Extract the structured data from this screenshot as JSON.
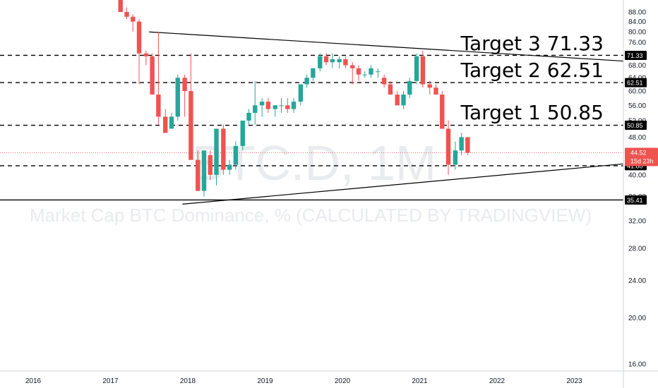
{
  "watermark": {
    "symbol": "BTC.D, 1M",
    "description": "Market Cap BTC Dominance, % (CALCULATED BY TRADINGVIEW)"
  },
  "colors": {
    "up": "#26a69a",
    "down": "#ef5350",
    "line": "#000000",
    "axis_border": "#cfd3dc"
  },
  "chart_data": {
    "type": "candlestick",
    "y_scale": "log",
    "ylim": [
      14.6,
      94
    ],
    "y_ticks": [
      "88.00",
      "84.00",
      "80.00",
      "76.00",
      "72.00",
      "68.00",
      "64.00",
      "60.00",
      "56.00",
      "52.00",
      "48.00",
      "44.00",
      "40.00",
      "36.00",
      "32.00",
      "28.00",
      "24.00",
      "20.00",
      "16.00"
    ],
    "x_ticks": [
      "2016",
      "2017",
      "2018",
      "2019",
      "2020",
      "2021",
      "2022",
      "2023"
    ],
    "candles": [
      {
        "t": 2017.13,
        "o": 96,
        "h": 98,
        "l": 88,
        "c": 88
      },
      {
        "t": 2017.21,
        "o": 88,
        "h": 90,
        "l": 85,
        "c": 86
      },
      {
        "t": 2017.29,
        "o": 86,
        "h": 87,
        "l": 80,
        "c": 84
      },
      {
        "t": 2017.37,
        "o": 84,
        "h": 85,
        "l": 62,
        "c": 72
      },
      {
        "t": 2017.46,
        "o": 72,
        "h": 73,
        "l": 68,
        "c": 71
      },
      {
        "t": 2017.54,
        "o": 71,
        "h": 72,
        "l": 59,
        "c": 59
      },
      {
        "t": 2017.62,
        "o": 59,
        "h": 80,
        "l": 51,
        "c": 53
      },
      {
        "t": 2017.71,
        "o": 53,
        "h": 55,
        "l": 49,
        "c": 49
      },
      {
        "t": 2017.79,
        "o": 50,
        "h": 54,
        "l": 50,
        "c": 53
      },
      {
        "t": 2017.87,
        "o": 53,
        "h": 65,
        "l": 52,
        "c": 64
      },
      {
        "t": 2017.96,
        "o": 64,
        "h": 65,
        "l": 53,
        "c": 60
      },
      {
        "t": 2018.04,
        "o": 60,
        "h": 72,
        "l": 43,
        "c": 43
      },
      {
        "t": 2018.13,
        "o": 43,
        "h": 45,
        "l": 37,
        "c": 37
      },
      {
        "t": 2018.21,
        "o": 37,
        "h": 45,
        "l": 36,
        "c": 45
      },
      {
        "t": 2018.29,
        "o": 44,
        "h": 45,
        "l": 39,
        "c": 40
      },
      {
        "t": 2018.37,
        "o": 40,
        "h": 50,
        "l": 38,
        "c": 50
      },
      {
        "t": 2018.46,
        "o": 50,
        "h": 51,
        "l": 40,
        "c": 41
      },
      {
        "t": 2018.54,
        "o": 41,
        "h": 43,
        "l": 40,
        "c": 42
      },
      {
        "t": 2018.62,
        "o": 42,
        "h": 47,
        "l": 41,
        "c": 46
      },
      {
        "t": 2018.71,
        "o": 46,
        "h": 52,
        "l": 45,
        "c": 52
      },
      {
        "t": 2018.79,
        "o": 52,
        "h": 55,
        "l": 51,
        "c": 54
      },
      {
        "t": 2018.87,
        "o": 54,
        "h": 63,
        "l": 51,
        "c": 56
      },
      {
        "t": 2018.96,
        "o": 56,
        "h": 58,
        "l": 53,
        "c": 57
      },
      {
        "t": 2019.04,
        "o": 57,
        "h": 58,
        "l": 54,
        "c": 55
      },
      {
        "t": 2019.13,
        "o": 55,
        "h": 56,
        "l": 53,
        "c": 56
      },
      {
        "t": 2019.21,
        "o": 56,
        "h": 58,
        "l": 54,
        "c": 56
      },
      {
        "t": 2019.29,
        "o": 56,
        "h": 58,
        "l": 54,
        "c": 55
      },
      {
        "t": 2019.37,
        "o": 55,
        "h": 58,
        "l": 54,
        "c": 57
      },
      {
        "t": 2019.46,
        "o": 57,
        "h": 62,
        "l": 56,
        "c": 62
      },
      {
        "t": 2019.54,
        "o": 62,
        "h": 65,
        "l": 61,
        "c": 64
      },
      {
        "t": 2019.62,
        "o": 64,
        "h": 67,
        "l": 63,
        "c": 67
      },
      {
        "t": 2019.71,
        "o": 67,
        "h": 72,
        "l": 66,
        "c": 71
      },
      {
        "t": 2019.79,
        "o": 71,
        "h": 72,
        "l": 68,
        "c": 69
      },
      {
        "t": 2019.87,
        "o": 69,
        "h": 72,
        "l": 67,
        "c": 70
      },
      {
        "t": 2019.96,
        "o": 69,
        "h": 71,
        "l": 67,
        "c": 70
      },
      {
        "t": 2020.04,
        "o": 70,
        "h": 71,
        "l": 67,
        "c": 68
      },
      {
        "t": 2020.13,
        "o": 68,
        "h": 69,
        "l": 62,
        "c": 67
      },
      {
        "t": 2020.21,
        "o": 67,
        "h": 68,
        "l": 63,
        "c": 65
      },
      {
        "t": 2020.29,
        "o": 65,
        "h": 66,
        "l": 64,
        "c": 65
      },
      {
        "t": 2020.37,
        "o": 65,
        "h": 68,
        "l": 64,
        "c": 67
      },
      {
        "t": 2020.46,
        "o": 66,
        "h": 67,
        "l": 64,
        "c": 66
      },
      {
        "t": 2020.54,
        "o": 64,
        "h": 65,
        "l": 61,
        "c": 62
      },
      {
        "t": 2020.62,
        "o": 62,
        "h": 63,
        "l": 59,
        "c": 59
      },
      {
        "t": 2020.71,
        "o": 59,
        "h": 60,
        "l": 56,
        "c": 56
      },
      {
        "t": 2020.79,
        "o": 56,
        "h": 60,
        "l": 55,
        "c": 59
      },
      {
        "t": 2020.87,
        "o": 59,
        "h": 64,
        "l": 58,
        "c": 63
      },
      {
        "t": 2020.96,
        "o": 63,
        "h": 72,
        "l": 62,
        "c": 71
      },
      {
        "t": 2021.04,
        "o": 71,
        "h": 73,
        "l": 61,
        "c": 62
      },
      {
        "t": 2021.13,
        "o": 62,
        "h": 63,
        "l": 59,
        "c": 61
      },
      {
        "t": 2021.21,
        "o": 61,
        "h": 62,
        "l": 59,
        "c": 59
      },
      {
        "t": 2021.29,
        "o": 59,
        "h": 60,
        "l": 50,
        "c": 50
      },
      {
        "t": 2021.37,
        "o": 50,
        "h": 52,
        "l": 40,
        "c": 42
      },
      {
        "t": 2021.46,
        "o": 42,
        "h": 47,
        "l": 41,
        "c": 45
      },
      {
        "t": 2021.54,
        "o": 45,
        "h": 49,
        "l": 44,
        "c": 48
      },
      {
        "t": 2021.62,
        "o": 48,
        "h": 48,
        "l": 44,
        "c": 44.52
      }
    ],
    "trendlines": [
      {
        "name": "upper",
        "x1": 2017.5,
        "y1": 79.9,
        "x2": 2024.0,
        "y2": 68.8
      },
      {
        "name": "lower",
        "x1": 2017.93,
        "y1": 34.7,
        "x2": 2024.0,
        "y2": 42.7
      }
    ],
    "horizontal_lines": [
      {
        "value": 71.33,
        "label": "71.33",
        "style": "dashed"
      },
      {
        "value": 62.51,
        "label": "62.51",
        "style": "dashed"
      },
      {
        "value": 50.85,
        "label": "50.85",
        "style": "dashed"
      },
      {
        "value": 41.8,
        "label": "41.80",
        "style": "dashed"
      },
      {
        "value": 35.41,
        "label": "35.41",
        "style": "solid"
      }
    ],
    "annotations": [
      {
        "text": "Target 3 71.33",
        "x": 2021.53,
        "y": 73.2
      },
      {
        "text": "Target 2 62.51",
        "x": 2021.53,
        "y": 64.3
      },
      {
        "text": "Target 1 50.85",
        "x": 2021.53,
        "y": 52.4
      }
    ],
    "last_price": {
      "value": 44.52,
      "label": "44.52",
      "countdown": "15d 23h"
    }
  }
}
